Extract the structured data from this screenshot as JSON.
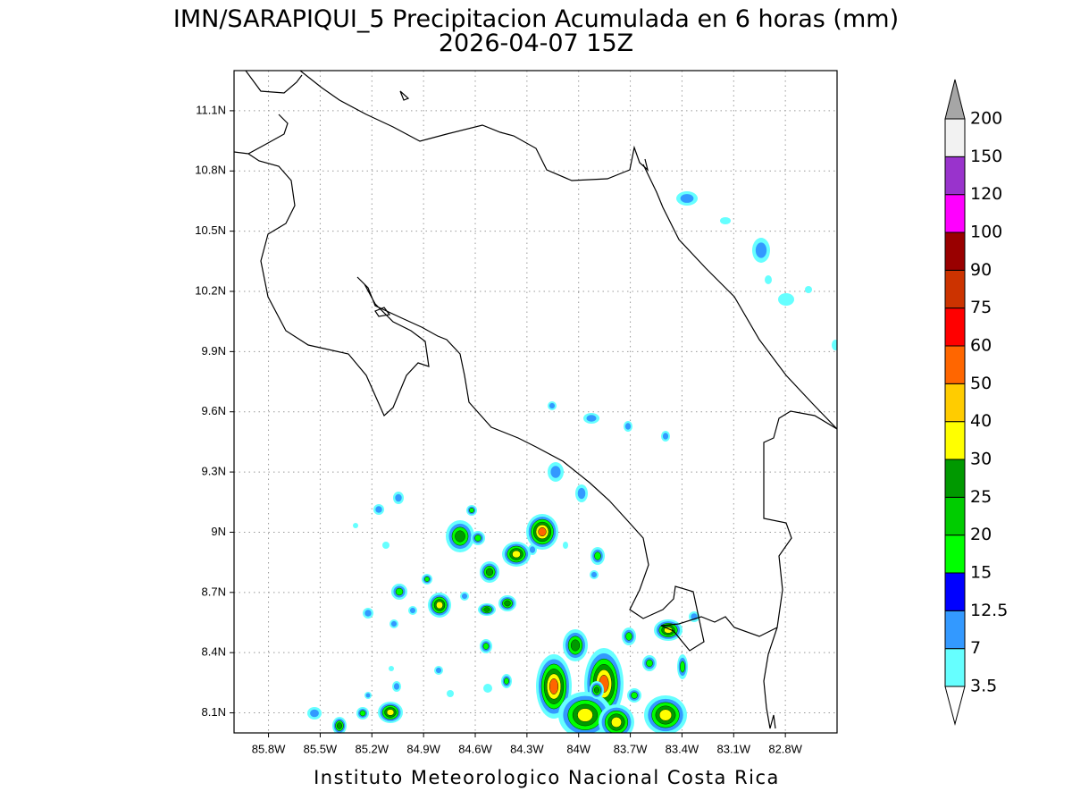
{
  "map": {
    "title": "IMN/SARAPIQUI_5 Precipitacion Acumulada en 6 horas (mm)",
    "subtitle": "2026-04-07 15Z",
    "footer": "Instituto Meteorologico Nacional Costa Rica",
    "lonlim": [
      -86.0,
      -82.5
    ],
    "latlim": [
      8.0,
      11.3
    ],
    "lonticks": [
      {
        "value": -85.8,
        "label": "85.8W"
      },
      {
        "value": -85.5,
        "label": "85.5W"
      },
      {
        "value": -85.2,
        "label": "85.2W"
      },
      {
        "value": -84.9,
        "label": "84.9W"
      },
      {
        "value": -84.6,
        "label": "84.6W"
      },
      {
        "value": -84.3,
        "label": "84.3W"
      },
      {
        "value": -84.0,
        "label": "84W"
      },
      {
        "value": -83.7,
        "label": "83.7W"
      },
      {
        "value": -83.4,
        "label": "83.4W"
      },
      {
        "value": -83.1,
        "label": "83.1W"
      },
      {
        "value": -82.8,
        "label": "82.8W"
      }
    ],
    "latticks": [
      {
        "value": 8.1,
        "label": "8.1N"
      },
      {
        "value": 8.4,
        "label": "8.4N"
      },
      {
        "value": 8.7,
        "label": "8.7N"
      },
      {
        "value": 9.0,
        "label": "9N"
      },
      {
        "value": 9.3,
        "label": "9.3N"
      },
      {
        "value": 9.6,
        "label": "9.6N"
      },
      {
        "value": 9.9,
        "label": "9.9N"
      },
      {
        "value": 10.2,
        "label": "10.2N"
      },
      {
        "value": 10.5,
        "label": "10.5N"
      },
      {
        "value": 10.8,
        "label": "10.8N"
      },
      {
        "value": 11.1,
        "label": "11.1N"
      }
    ],
    "grid": true,
    "colorbar": {
      "levels": [
        3.5,
        7,
        12.5,
        15,
        20,
        25,
        30,
        40,
        50,
        60,
        75,
        90,
        100,
        120,
        150,
        200
      ],
      "colors": [
        "#66ffff",
        "#3399ff",
        "#0000ff",
        "#00ff00",
        "#00cc00",
        "#009900",
        "#ffff00",
        "#ffcc00",
        "#ff6600",
        "#ff0000",
        "#cc3300",
        "#990000",
        "#ff00ff",
        "#9933cc",
        "#f2f2f2"
      ],
      "under_color": "#ffffff",
      "over_color": "#a6a6a6"
    }
  }
}
